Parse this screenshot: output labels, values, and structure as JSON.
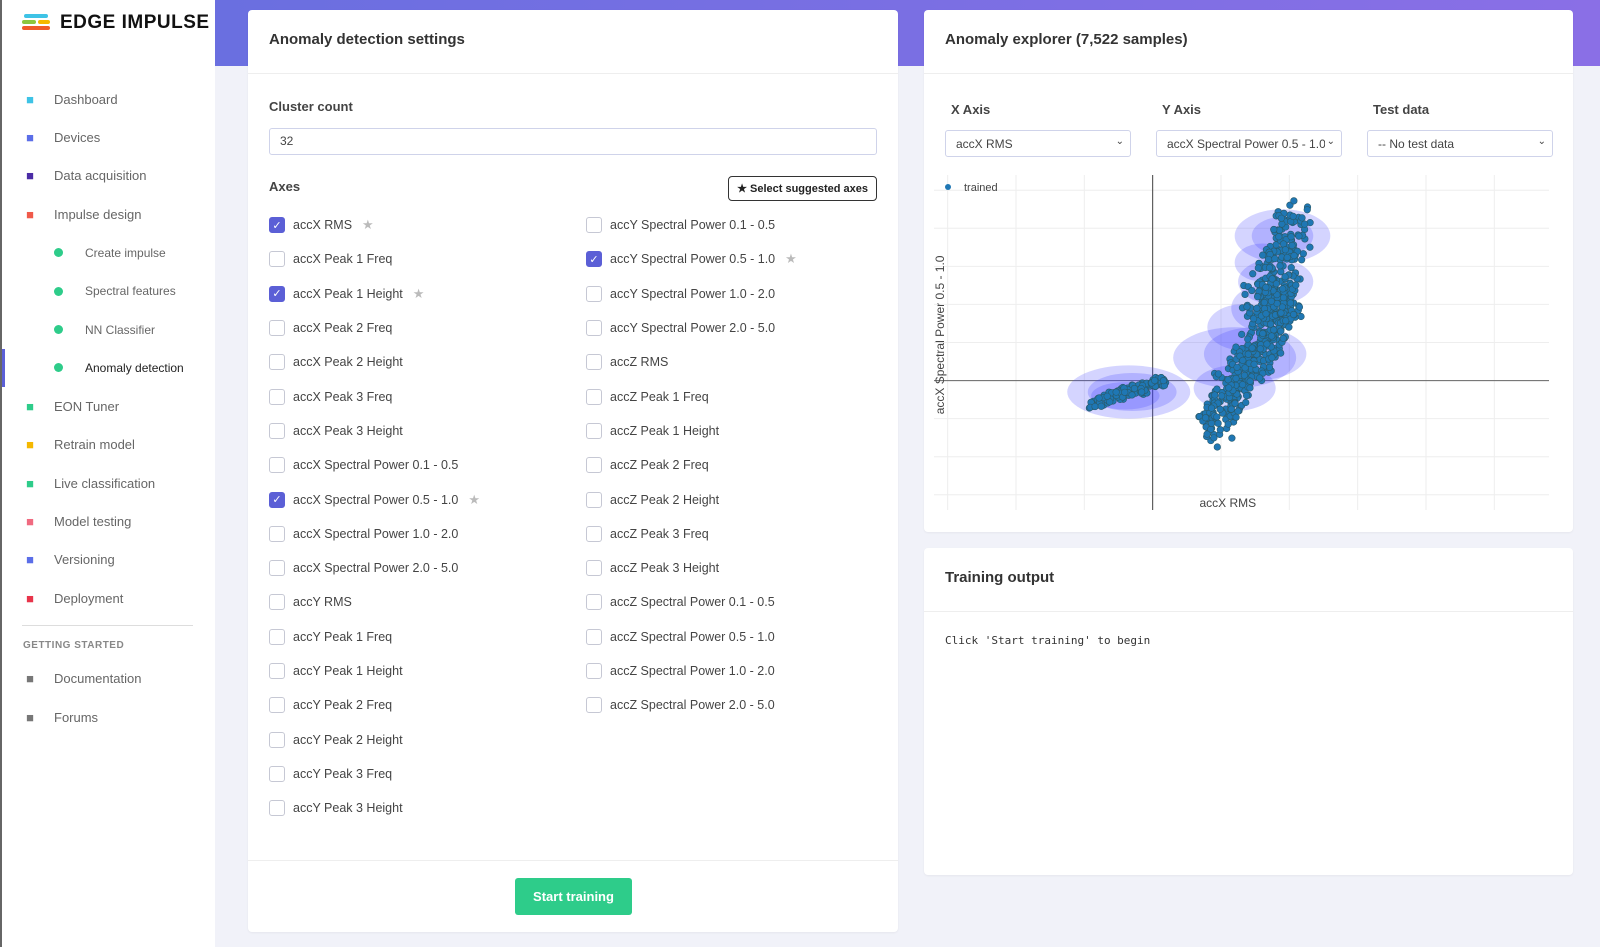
{
  "brand": {
    "name": "EDGE IMPULSE"
  },
  "sidebar": {
    "items": [
      {
        "label": "Dashboard",
        "icon": "monitor-icon",
        "color": "#3ec3e6"
      },
      {
        "label": "Devices",
        "icon": "chip-icon",
        "color": "#5b6ee8"
      },
      {
        "label": "Data acquisition",
        "icon": "database-icon",
        "color": "#4b2ca6"
      },
      {
        "label": "Impulse design",
        "icon": "pulse-icon",
        "color": "#f05a4a"
      }
    ],
    "sub_items": [
      {
        "label": "Create impulse"
      },
      {
        "label": "Spectral features"
      },
      {
        "label": "NN Classifier"
      },
      {
        "label": "Anomaly detection"
      }
    ],
    "items2": [
      {
        "label": "EON Tuner",
        "icon": "tuner-icon",
        "color": "#2ecc8a"
      },
      {
        "label": "Retrain model",
        "icon": "shuffle-icon",
        "color": "#f5b800"
      },
      {
        "label": "Live classification",
        "icon": "live-icon",
        "color": "#2ecc8a"
      },
      {
        "label": "Model testing",
        "icon": "clipboard-icon",
        "color": "#f06a80"
      },
      {
        "label": "Versioning",
        "icon": "branch-icon",
        "color": "#5b6ee8"
      },
      {
        "label": "Deployment",
        "icon": "box-icon",
        "color": "#e8344a"
      }
    ],
    "section": "GETTING STARTED",
    "items3": [
      {
        "label": "Documentation",
        "icon": "rocket-icon"
      },
      {
        "label": "Forums",
        "icon": "chat-icon"
      }
    ]
  },
  "settings": {
    "title": "Anomaly detection settings",
    "cluster_label": "Cluster count",
    "cluster_value": "32",
    "axes_label": "Axes",
    "suggest_label": "Select suggested axes",
    "start_label": "Start training",
    "axes": [
      {
        "label": "accX RMS",
        "checked": true,
        "star": true
      },
      {
        "label": "accX Peak 1 Freq"
      },
      {
        "label": "accX Peak 1 Height",
        "checked": true,
        "star": true
      },
      {
        "label": "accX Peak 2 Freq"
      },
      {
        "label": "accX Peak 2 Height"
      },
      {
        "label": "accX Peak 3 Freq"
      },
      {
        "label": "accX Peak 3 Height"
      },
      {
        "label": "accX Spectral Power 0.1 - 0.5"
      },
      {
        "label": "accX Spectral Power 0.5 - 1.0",
        "checked": true,
        "star": true
      },
      {
        "label": "accX Spectral Power 1.0 - 2.0"
      },
      {
        "label": "accX Spectral Power 2.0 - 5.0"
      },
      {
        "label": "accY RMS"
      },
      {
        "label": "accY Peak 1 Freq"
      },
      {
        "label": "accY Peak 1 Height"
      },
      {
        "label": "accY Peak 2 Freq"
      },
      {
        "label": "accY Peak 2 Height"
      },
      {
        "label": "accY Peak 3 Freq"
      },
      {
        "label": "accY Peak 3 Height"
      },
      {
        "label": "accY Spectral Power 0.1 - 0.5"
      },
      {
        "label": "accY Spectral Power 0.5 - 1.0",
        "checked": true,
        "star": true
      },
      {
        "label": "accY Spectral Power 1.0 - 2.0"
      },
      {
        "label": "accY Spectral Power 2.0 - 5.0"
      },
      {
        "label": "accZ RMS"
      },
      {
        "label": "accZ Peak 1 Freq"
      },
      {
        "label": "accZ Peak 1 Height"
      },
      {
        "label": "accZ Peak 2 Freq"
      },
      {
        "label": "accZ Peak 2 Height"
      },
      {
        "label": "accZ Peak 3 Freq"
      },
      {
        "label": "accZ Peak 3 Height"
      },
      {
        "label": "accZ Spectral Power 0.1 - 0.5"
      },
      {
        "label": "accZ Spectral Power 0.5 - 1.0"
      },
      {
        "label": "accZ Spectral Power 1.0 - 2.0"
      },
      {
        "label": "accZ Spectral Power 2.0 - 5.0"
      }
    ]
  },
  "explorer": {
    "title": "Anomaly explorer (7,522 samples)",
    "x_label": "X Axis",
    "y_label": "Y Axis",
    "test_label": "Test data",
    "x_value": "accX RMS",
    "y_value": "accX Spectral Power 0.5 - 1.0",
    "test_value": "-- No test data"
  },
  "chart_data": {
    "type": "scatter",
    "xlabel": "accX RMS",
    "ylabel": "accX Spectral Power 0.5 - 1.0",
    "legend": [
      "trained"
    ],
    "legend_position": "top-left",
    "xlim": [
      -3.2,
      5.8
    ],
    "ylim": [
      -1.7,
      2.7
    ],
    "point_color": "#1f77b4",
    "cluster_color": "#3a3aff",
    "clusters": [
      [
        -0.35,
        -0.15,
        0.9,
        0.35
      ],
      [
        -0.3,
        -0.15,
        0.65,
        0.25
      ],
      [
        -0.4,
        -0.2,
        0.5,
        0.18
      ],
      [
        1.2,
        0.3,
        0.9,
        0.4
      ],
      [
        1.5,
        0.35,
        0.75,
        0.35
      ],
      [
        1.2,
        -0.1,
        0.6,
        0.3
      ],
      [
        1.3,
        0.7,
        0.5,
        0.3
      ],
      [
        1.6,
        0.95,
        0.45,
        0.3
      ],
      [
        1.8,
        1.3,
        0.55,
        0.3
      ],
      [
        1.6,
        1.55,
        0.4,
        0.25
      ],
      [
        1.9,
        1.9,
        0.7,
        0.35
      ],
      [
        1.9,
        1.9,
        0.45,
        0.25
      ]
    ],
    "sample_groups": [
      {
        "x": [
          -0.9,
          0.2
        ],
        "y": [
          -0.3,
          0
        ],
        "n": 120
      },
      {
        "x": [
          0.9,
          2.0
        ],
        "y": [
          -0.6,
          1.2
        ],
        "n": 420
      },
      {
        "x": [
          1.5,
          2.1
        ],
        "y": [
          0.9,
          2.1
        ],
        "n": 180
      }
    ]
  },
  "training": {
    "title": "Training output",
    "text": "Click 'Start training' to begin"
  }
}
